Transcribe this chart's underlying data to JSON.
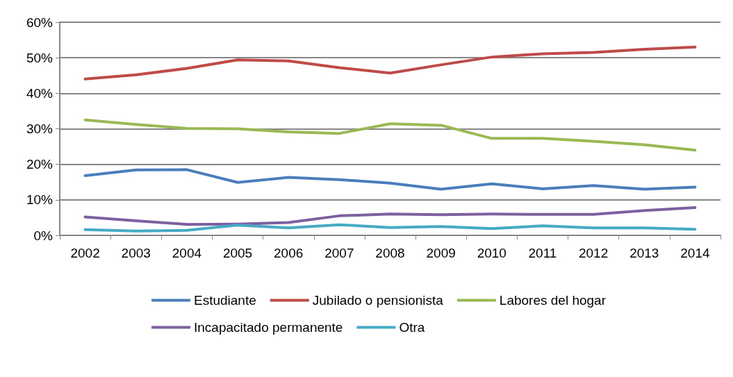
{
  "chart_data": {
    "type": "line",
    "categories": [
      "2002",
      "2003",
      "2004",
      "2005",
      "2006",
      "2007",
      "2008",
      "2009",
      "2010",
      "2011",
      "2012",
      "2013",
      "2014"
    ],
    "series": [
      {
        "name": "Estudiante",
        "color": "#4a7ebb",
        "values": [
          16.8,
          18.4,
          18.5,
          14.9,
          16.3,
          15.7,
          14.7,
          13.0,
          14.5,
          13.1,
          14.0,
          13.0,
          13.6
        ]
      },
      {
        "name": "Jubilado o pensionista",
        "color": "#be4b48",
        "values": [
          44.0,
          45.2,
          47.0,
          49.4,
          49.1,
          47.2,
          45.7,
          48.0,
          50.2,
          51.1,
          51.5,
          52.4,
          53.0
        ]
      },
      {
        "name": "Labores del hogar",
        "color": "#98b954",
        "values": [
          32.5,
          31.2,
          30.1,
          30.0,
          29.1,
          28.7,
          31.4,
          31.0,
          27.3,
          27.3,
          26.5,
          25.5,
          24.0
        ]
      },
      {
        "name": "Incapacitado permanente",
        "color": "#7d60a0",
        "values": [
          5.2,
          4.1,
          3.1,
          3.2,
          3.6,
          5.5,
          6.0,
          5.8,
          6.0,
          5.9,
          5.9,
          7.0,
          7.8
        ]
      },
      {
        "name": "Otra",
        "color": "#46aac5",
        "values": [
          1.6,
          1.2,
          1.4,
          2.9,
          2.1,
          3.0,
          2.2,
          2.5,
          1.9,
          2.7,
          2.1,
          2.1,
          1.7
        ]
      }
    ],
    "ylim": [
      0,
      60
    ],
    "yticks": [
      {
        "value": 0,
        "label": "0%"
      },
      {
        "value": 10,
        "label": "10%"
      },
      {
        "value": 20,
        "label": "20%"
      },
      {
        "value": 30,
        "label": "30%"
      },
      {
        "value": 40,
        "label": "40%"
      },
      {
        "value": 50,
        "label": "50%"
      },
      {
        "value": 60,
        "label": "60%"
      }
    ],
    "grid": "y",
    "legend": "bottom",
    "marker": "none",
    "line_style": "solid"
  }
}
